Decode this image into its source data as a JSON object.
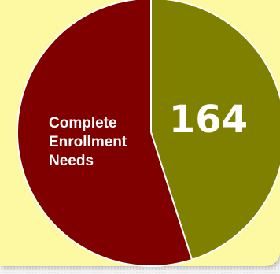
{
  "chart_data": {
    "type": "pie",
    "slices": [
      {
        "label": "",
        "value": 164,
        "value_label": "164",
        "color": "#808000"
      },
      {
        "label": "Complete Enrollment Needs",
        "label_lines": [
          "Complete",
          "Enrollment",
          "Needs"
        ],
        "value": 200,
        "color": "#800000"
      }
    ],
    "title": "",
    "legend": "none"
  },
  "colors": {
    "panel_background": "#fdf8a2",
    "slice_border": "#ffffff"
  }
}
